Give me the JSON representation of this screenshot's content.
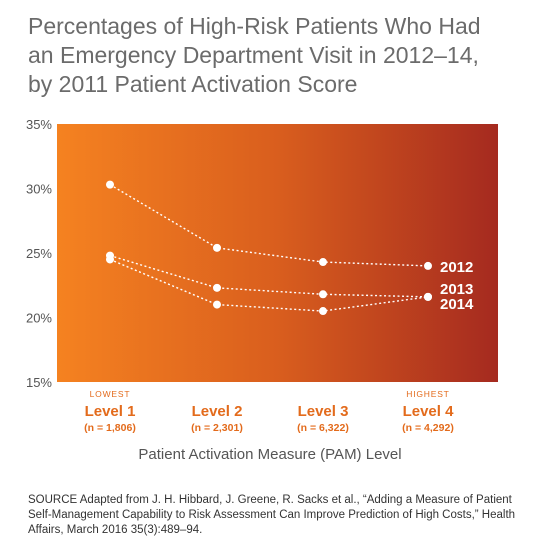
{
  "title_lines": [
    "Percentages of High-Risk Patients Who Had",
    "an Emergency Department Visit in 2012–14,",
    "by 2011 Patient Activation Score"
  ],
  "source": "SOURCE Adapted from J. H. Hibbard, J. Greene, R. Sacks et al., “Adding a Measure of Patient Self-Management Capability to Risk Assessment Can Improve Prediction of High Costs,” Health Affairs, March 2016 35(3):489–94.",
  "colors": {
    "gradient_start": "#f58220",
    "gradient_mid": "#d95e1e",
    "gradient_end": "#a52a1f",
    "category_label": "#e36b1c",
    "axis_text": "#555555",
    "line": "#ffffff"
  },
  "chart_data": {
    "type": "line",
    "xlabel": "Patient Activation Measure (PAM) Level",
    "ylabel": "",
    "ylim": [
      15,
      35
    ],
    "yticks": [
      "35%",
      "30%",
      "25%",
      "20%",
      "15%"
    ],
    "grid": false,
    "legend": "labels at line ends",
    "categories": [
      {
        "top_label": "LOWEST",
        "label": "Level 1",
        "n": "(n = 1,806)"
      },
      {
        "top_label": "",
        "label": "Level 2",
        "n": "(n = 2,301)"
      },
      {
        "top_label": "",
        "label": "Level 3",
        "n": "(n = 6,322)"
      },
      {
        "top_label": "HIGHEST",
        "label": "Level 4",
        "n": "(n = 4,292)"
      }
    ],
    "series": [
      {
        "name": "2012",
        "values": [
          30.3,
          25.4,
          24.3,
          24.0
        ]
      },
      {
        "name": "2013",
        "values": [
          24.8,
          22.3,
          21.8,
          21.6
        ]
      },
      {
        "name": "2014",
        "values": [
          24.5,
          21.0,
          20.5,
          21.6
        ]
      }
    ]
  }
}
